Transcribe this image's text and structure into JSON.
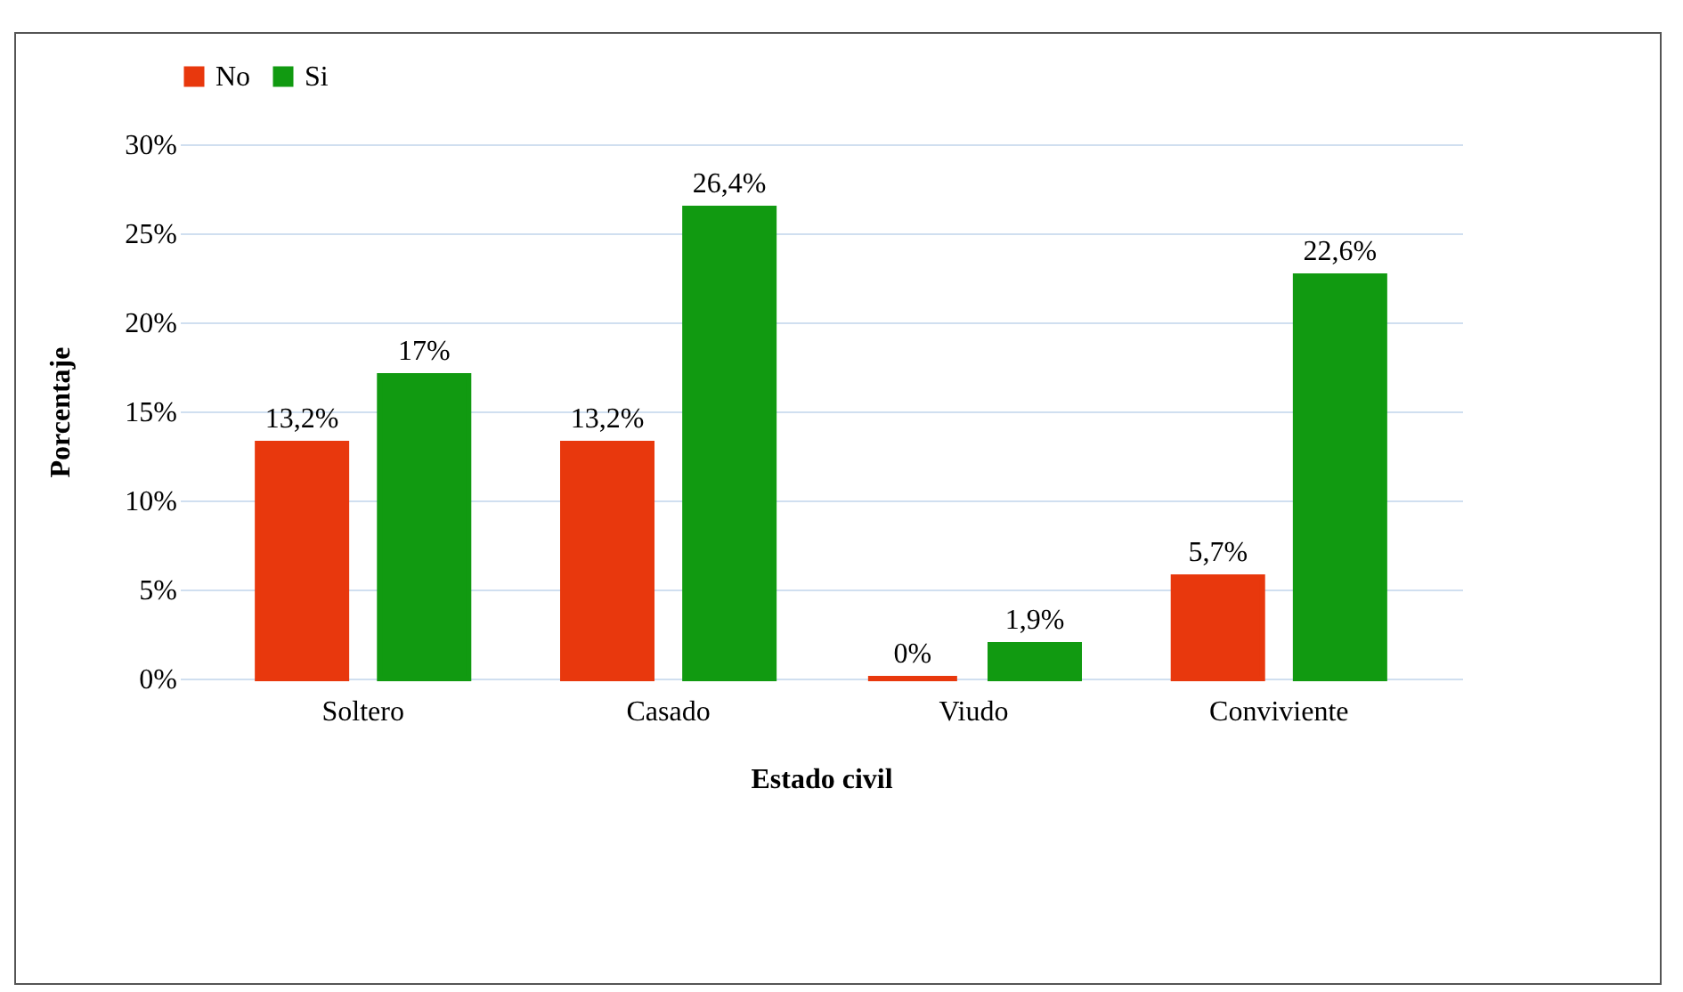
{
  "chart_data": {
    "type": "bar",
    "xlabel": "Estado civil",
    "ylabel": "Porcentaje",
    "categories": [
      "Soltero",
      "Casado",
      "Viudo",
      "Conviviente"
    ],
    "series": [
      {
        "name": "No",
        "color": "#e8380d",
        "values": [
          13.2,
          13.2,
          0,
          5.7
        ],
        "value_labels": [
          "13,2%",
          "13,2%",
          "0%",
          "5,7%"
        ]
      },
      {
        "name": "Si",
        "color": "#119a11",
        "values": [
          17,
          26.4,
          1.9,
          22.6
        ],
        "value_labels": [
          "17%",
          "26,4%",
          "1,9%",
          "22,6%"
        ]
      }
    ],
    "ylim": [
      0,
      30
    ],
    "yticks": [
      {
        "value": 0,
        "label": "0%"
      },
      {
        "value": 5,
        "label": "5%"
      },
      {
        "value": 10,
        "label": "10%"
      },
      {
        "value": 15,
        "label": "15%"
      },
      {
        "value": 20,
        "label": "20%"
      },
      {
        "value": 25,
        "label": "25%"
      },
      {
        "value": 30,
        "label": "30%"
      }
    ],
    "grid": "y",
    "legend": "top"
  }
}
